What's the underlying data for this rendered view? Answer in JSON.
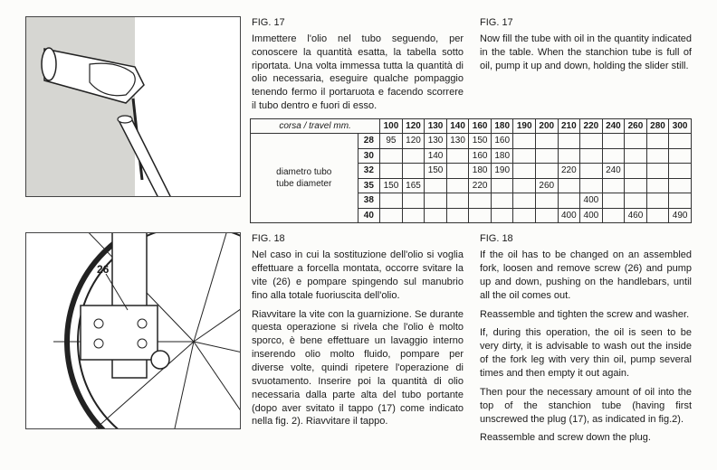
{
  "fig17": {
    "label_it": "FIG. 17",
    "label_en": "FIG. 17",
    "text_it": "Immettere l'olio nel tubo seguendo, per conoscere la quantità esatta, la tabella sotto riportata. Una volta immessa tutta la quantità di olio necessaria, eseguire qualche pompaggio tenendo fermo il portaruota e facendo scorrere il tubo dentro e fuori di esso.",
    "text_en": "Now fill the tube with oil in the quantity indicated in the table. When the stanchion tube is full of oil, pump it up and down, holding the slider still."
  },
  "table": {
    "header_left": "corsa / travel mm.",
    "rowgroup_it": "diametro tubo",
    "rowgroup_en": "tube diameter",
    "travel_cols": [
      "100",
      "120",
      "130",
      "140",
      "160",
      "180",
      "190",
      "200",
      "210",
      "220",
      "240",
      "260",
      "280",
      "300"
    ],
    "rows": [
      {
        "d": "28",
        "v": [
          "95",
          "120",
          "130",
          "130",
          "150",
          "160",
          "",
          "",
          "",
          "",
          "",
          "",
          "",
          ""
        ]
      },
      {
        "d": "30",
        "v": [
          "",
          "",
          "140",
          "",
          "160",
          "180",
          "",
          "",
          "",
          "",
          "",
          "",
          "",
          ""
        ]
      },
      {
        "d": "32",
        "v": [
          "",
          "",
          "150",
          "",
          "180",
          "190",
          "",
          "",
          "220",
          "",
          "240",
          "",
          "",
          ""
        ]
      },
      {
        "d": "35",
        "v": [
          "150",
          "165",
          "",
          "",
          "220",
          "",
          "",
          "260",
          "",
          "",
          "",
          "",
          "",
          ""
        ]
      },
      {
        "d": "38",
        "v": [
          "",
          "",
          "",
          "",
          "",
          "",
          "",
          "",
          "",
          "400",
          "",
          "",
          "",
          ""
        ]
      },
      {
        "d": "40",
        "v": [
          "",
          "",
          "",
          "",
          "",
          "",
          "",
          "",
          "400",
          "400",
          "",
          "460",
          "",
          "490"
        ]
      }
    ]
  },
  "fig18": {
    "label_it": "FIG. 18",
    "label_en": "FIG. 18",
    "callout_26": "26",
    "text_it_p1": "Nel caso in cui la sostituzione dell'olio si voglia effettuare a forcella montata, occorre svitare la vite (26) e pompare spingendo sul manubrio fino alla totale fuoriuscita dell'olio.",
    "text_it_p2": "Riavvitare la vite con la guarnizione. Se durante questa operazione si rivela che l'olio è molto sporco, è bene effettuare un lavaggio interno inserendo olio molto fluido, pompare per diverse volte, quindi ripetere l'operazione di svuotamento. Inserire poi la quantità di olio necessaria dalla parte alta del tubo portante (dopo aver svitato il tappo (17) come indicato nella fig. 2). Riavvitare il tappo.",
    "text_en_p1": "If the oil has to be changed on an assembled fork, loosen and remove screw (26) and pump up and down, pushing on the handlebars, until all the oil comes out.",
    "text_en_p2": "Reassemble and tighten the screw and washer.",
    "text_en_p3": "If, during this operation, the oil is seen to be very dirty, it is advisable to wash out the inside of the fork leg with very thin oil, pump several times and then empty it out again.",
    "text_en_p4": "Then pour the necessary amount of oil into the top of the stanchion tube (having first unscrewed the plug (17), as indicated in fig.2).",
    "text_en_p5": "Reassemble and screw down the plug."
  }
}
